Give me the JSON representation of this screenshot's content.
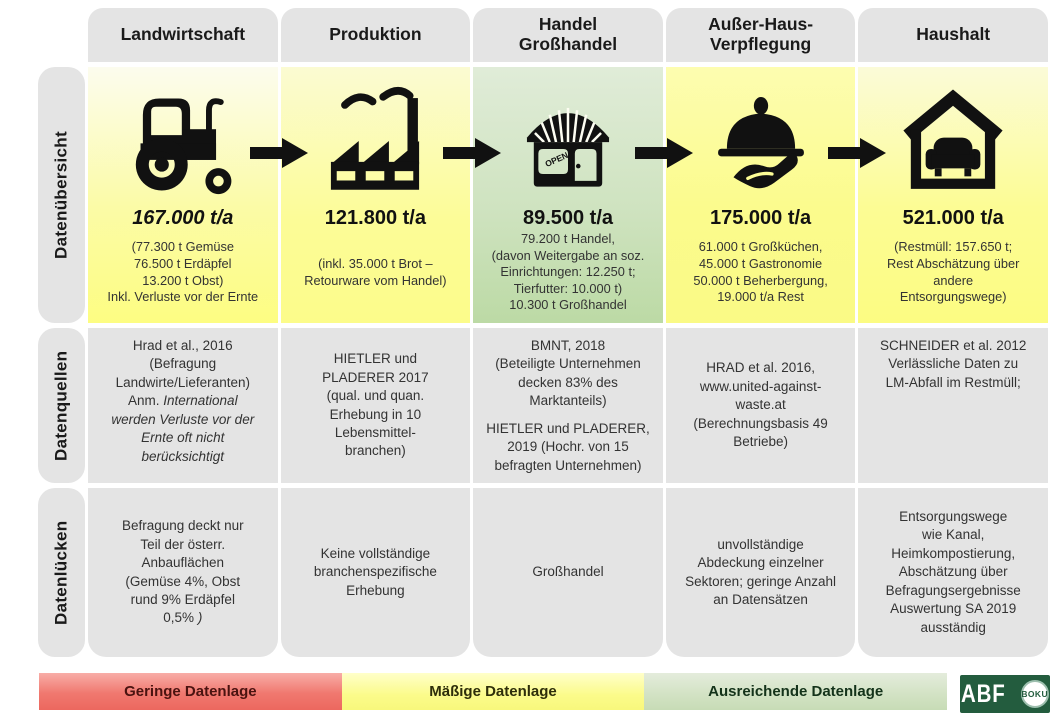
{
  "sidebar": {
    "rows": [
      "Datenübersicht",
      "Datenquellen",
      "Datenlücken"
    ]
  },
  "columns": [
    {
      "header_lines": [
        "Landwirtschaft"
      ],
      "icon": "tractor-icon",
      "value": "167.000 t/a",
      "bg": "background:linear-gradient(180deg,#fcfcee 0%,#fbfba6 55%,#fdfd82 100%)",
      "overview_lines": [
        "(77.300 t Gemüse",
        "76.500 t Erdäpfel",
        "13.200 t Obst)",
        "Inkl. Verluste vor der Ernte"
      ],
      "sources_lines": [
        "Hrad et al., 2016",
        "(Befragung",
        "Landwirte/Lieferanten)",
        {
          "segs": [
            {
              "t": "Anm. "
            },
            {
              "t": "International",
              "i": true
            }
          ]
        },
        {
          "segs": [
            {
              "t": "werden Verluste vor der",
              "i": true
            }
          ]
        },
        {
          "segs": [
            {
              "t": "Ernte oft nicht",
              "i": true
            }
          ]
        },
        {
          "segs": [
            {
              "t": "berücksichtigt",
              "i": true
            }
          ]
        }
      ],
      "gaps_lines": [
        "Befragung deckt nur",
        "Teil der österr.",
        "Anbauflächen",
        "(Gemüse 4%, Obst",
        "rund 9% Erdäpfel",
        {
          "segs": [
            {
              "t": "0,5% "
            },
            {
              "t": ")",
              "i": true
            }
          ]
        }
      ]
    },
    {
      "header_lines": [
        "Produktion"
      ],
      "icon": "factory-icon",
      "value": "121.800 t/a",
      "bg": "background:linear-gradient(180deg,#fbfbd2 0%,#fcfc97 60%,#fcfc8a 100%)",
      "overview_lines": [
        "(inkl. 35.000 t Brot –",
        "Retourware vom Handel)"
      ],
      "sources_lines": [
        "HIETLER und",
        "PLADERER 2017",
        "(qual. und quan.",
        "Erhebung in 10",
        "Lebensmittel-",
        "branchen)"
      ],
      "gaps_lines": [
        "Keine vollständige",
        "branchenspezifische",
        "Erhebung"
      ]
    },
    {
      "header_lines": [
        "Handel",
        "Großhandel"
      ],
      "icon": "storefront-icon",
      "icon_open_label": "OPEN",
      "value": "89.500 t/a",
      "bg": "background:linear-gradient(180deg,#e0ecd8 0%,#cfe3c0 55%,#bcdaa5 100%)",
      "overview_lines": [
        "79.200 t Handel,",
        "(davon Weitergabe an soz.",
        "Einrichtungen: 12.250 t;",
        "Tierfutter: 10.000 t)",
        "10.300 t Großhandel"
      ],
      "sources_lines": [
        "BMNT, 2018",
        "(Beteiligte Unternehmen",
        "decken 83% des",
        "Marktanteils)",
        {
          "segs": [
            {
              "t": "HIETLER und PLADERER,"
            }
          ],
          "gap": true
        },
        "2019 (Hochr. von 15",
        "befragten Unternehmen)"
      ],
      "gaps_lines": [
        "Großhandel"
      ]
    },
    {
      "header_lines": [
        "Außer-Haus-",
        "Verpflegung"
      ],
      "icon": "cloche-hand-icon",
      "value": "175.000 t/a",
      "bg": "background:linear-gradient(180deg,#fdfdb0 0%,#fbfb8d 55%,#fafa85 100%)",
      "overview_lines": [
        "61.000 t Großküchen,",
        "45.000 t Gastronomie",
        "50.000 t Beherbergung,",
        "19.000 t/a Rest"
      ],
      "sources_lines": [
        "HRAD et al. 2016,",
        "www.united-against-",
        "waste.at",
        "(Berechnungsbasis 49",
        "Betriebe)"
      ],
      "gaps_lines": [
        "unvollständige",
        "Abdeckung einzelner",
        "Sektoren; geringe Anzahl",
        "an Datensätzen"
      ]
    },
    {
      "header_lines": [
        "Haushalt"
      ],
      "icon": "house-sofa-icon",
      "value": "521.000 t/a",
      "bg": "background:linear-gradient(180deg,#fbfbd8 0%,#fcfc94 55%,#fcfc82 100%)",
      "overview_lines": [
        "(Restmüll: 157.650 t;",
        "Rest Abschätzung über",
        "andere",
        "Entsorgungswege)"
      ],
      "sources_lines": [
        "SCHNEIDER et al. 2012",
        "Verlässliche Daten zu",
        "LM-Abfall im Restmüll;"
      ],
      "gaps_lines": [
        "Entsorgungswege",
        "wie Kanal,",
        "Heimkompostierung,",
        "Abschätzung über",
        "Befragungsergebnisse",
        "Auswertung SA 2019",
        "ausständig"
      ]
    }
  ],
  "legend": {
    "items": [
      {
        "label": "Geringe Datenlage",
        "bg": "background:linear-gradient(180deg,#f8ada7 0%,#f0786f 55%,#ec685f 100%);color:#4a1310"
      },
      {
        "label": "Mäßige Datenlage",
        "bg": "background:linear-gradient(180deg,#ffffc9 0%,#fbfb8a 60%,#f8f87c 100%);color:#2e2e0a"
      },
      {
        "label": "Ausreichende Datenlage",
        "bg": "background:linear-gradient(180deg,#e4ecdc 0%,#d2e2c3 60%,#c7dcb6 100%);color:#14331a"
      }
    ]
  },
  "logo": {
    "abf": "ABF",
    "boku": "BOKU",
    "bg_style": "background:#235c3e"
  }
}
